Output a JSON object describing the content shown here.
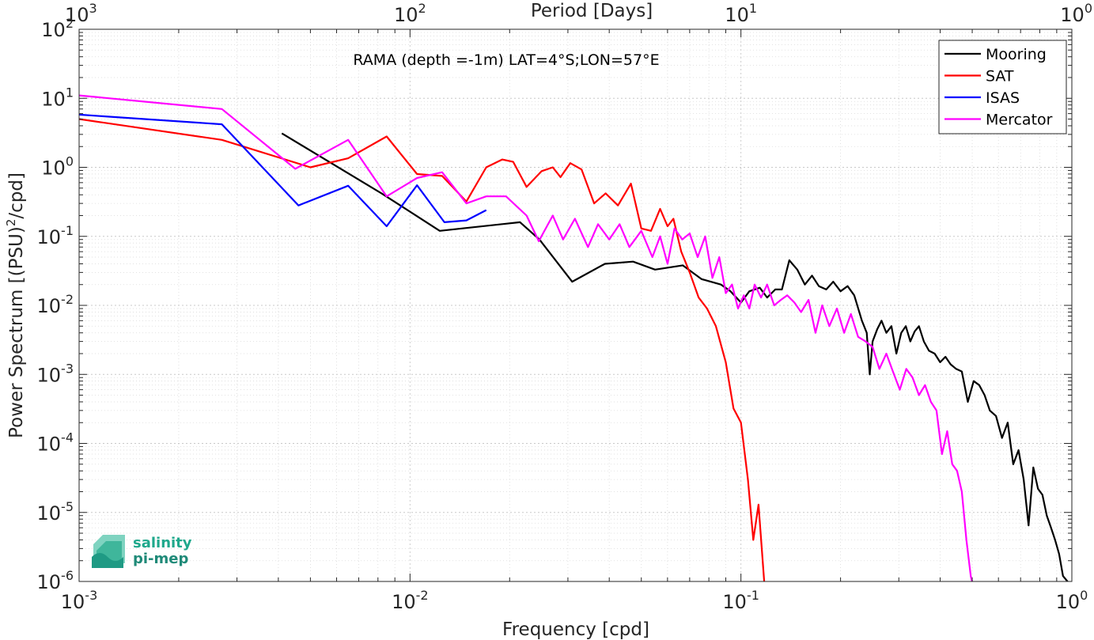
{
  "chart_data": {
    "type": "line",
    "title": "RAMA (depth =-1m) LAT=4°S;LON=57°E",
    "xlabel": "Frequency [cpd]",
    "ylabel": "Power Spectrum [(PSU)",
    "ylabel_sup": "2",
    "ylabel_tail": "/cpd]",
    "top_xlabel": "Period [Days]",
    "x_scale": "log",
    "y_scale": "log",
    "xlim": [
      0.001,
      1
    ],
    "ylim": [
      1e-06,
      100
    ],
    "grid": true,
    "legend_position": "top-right",
    "x_ticks": [
      {
        "value": 0.001,
        "base": "10",
        "exp": "-3"
      },
      {
        "value": 0.01,
        "base": "10",
        "exp": "-2"
      },
      {
        "value": 0.1,
        "base": "10",
        "exp": "-1"
      },
      {
        "value": 1,
        "base": "10",
        "exp": "0"
      }
    ],
    "top_ticks": [
      {
        "value": 0.001,
        "base": "10",
        "exp": "3"
      },
      {
        "value": 0.01,
        "base": "10",
        "exp": "2"
      },
      {
        "value": 0.1,
        "base": "10",
        "exp": "1"
      },
      {
        "value": 1,
        "base": "10",
        "exp": "0"
      }
    ],
    "y_ticks": [
      {
        "value": 100,
        "base": "10",
        "exp": "2"
      },
      {
        "value": 10,
        "base": "10",
        "exp": "1"
      },
      {
        "value": 1,
        "base": "10",
        "exp": "0"
      },
      {
        "value": 0.1,
        "base": "10",
        "exp": "-1"
      },
      {
        "value": 0.01,
        "base": "10",
        "exp": "-2"
      },
      {
        "value": 0.001,
        "base": "10",
        "exp": "-3"
      },
      {
        "value": 0.0001,
        "base": "10",
        "exp": "-4"
      },
      {
        "value": 1e-05,
        "base": "10",
        "exp": "-5"
      },
      {
        "value": 1e-06,
        "base": "10",
        "exp": "-6"
      }
    ],
    "series": [
      {
        "name": "Mooring",
        "color": "#000000",
        "points": [
          [
            0.0041,
            3.1
          ],
          [
            0.0082,
            0.42
          ],
          [
            0.0123,
            0.12
          ],
          [
            0.0215,
            0.16
          ],
          [
            0.0246,
            0.09
          ],
          [
            0.0309,
            0.022
          ],
          [
            0.0388,
            0.04
          ],
          [
            0.0472,
            0.043
          ],
          [
            0.055,
            0.033
          ],
          [
            0.0667,
            0.038
          ],
          [
            0.076,
            0.024
          ],
          [
            0.087,
            0.02
          ],
          [
            0.093,
            0.016
          ],
          [
            0.1,
            0.011
          ],
          [
            0.106,
            0.016
          ],
          [
            0.114,
            0.018
          ],
          [
            0.12,
            0.013
          ],
          [
            0.127,
            0.017
          ],
          [
            0.133,
            0.017
          ],
          [
            0.14,
            0.045
          ],
          [
            0.148,
            0.033
          ],
          [
            0.156,
            0.02
          ],
          [
            0.164,
            0.027
          ],
          [
            0.172,
            0.019
          ],
          [
            0.181,
            0.017
          ],
          [
            0.19,
            0.022
          ],
          [
            0.2,
            0.016
          ],
          [
            0.21,
            0.019
          ],
          [
            0.22,
            0.014
          ],
          [
            0.232,
            0.006
          ],
          [
            0.24,
            0.004
          ],
          [
            0.245,
            0.001
          ],
          [
            0.25,
            0.003
          ],
          [
            0.258,
            0.0045
          ],
          [
            0.266,
            0.006
          ],
          [
            0.275,
            0.004
          ],
          [
            0.285,
            0.005
          ],
          [
            0.295,
            0.002
          ],
          [
            0.305,
            0.004
          ],
          [
            0.315,
            0.005
          ],
          [
            0.325,
            0.003
          ],
          [
            0.335,
            0.0042
          ],
          [
            0.345,
            0.005
          ],
          [
            0.357,
            0.003
          ],
          [
            0.37,
            0.0022
          ],
          [
            0.385,
            0.002
          ],
          [
            0.4,
            0.0015
          ],
          [
            0.415,
            0.0018
          ],
          [
            0.43,
            0.0014
          ],
          [
            0.447,
            0.0012
          ],
          [
            0.465,
            0.0011
          ],
          [
            0.485,
            0.0004
          ],
          [
            0.505,
            0.0008
          ],
          [
            0.525,
            0.0007
          ],
          [
            0.545,
            0.0005
          ],
          [
            0.565,
            0.0003
          ],
          [
            0.59,
            0.00025
          ],
          [
            0.615,
            0.00012
          ],
          [
            0.64,
            0.0002
          ],
          [
            0.665,
            5e-05
          ],
          [
            0.69,
            8e-05
          ],
          [
            0.715,
            3e-05
          ],
          [
            0.74,
            6.5e-06
          ],
          [
            0.765,
            4.5e-05
          ],
          [
            0.79,
            2.2e-05
          ],
          [
            0.815,
            1.8e-05
          ],
          [
            0.84,
            9e-06
          ],
          [
            0.865,
            6e-06
          ],
          [
            0.89,
            4e-06
          ],
          [
            0.915,
            2.5e-06
          ],
          [
            0.94,
            1.2e-06
          ],
          [
            0.97,
            1e-06
          ],
          [
            1.0,
            8e-07
          ]
        ]
      },
      {
        "name": "SAT",
        "color": "#ff0000",
        "points": [
          [
            0.001,
            5.0
          ],
          [
            0.0027,
            2.5
          ],
          [
            0.005,
            1.0
          ],
          [
            0.0065,
            1.35
          ],
          [
            0.0085,
            2.8
          ],
          [
            0.0105,
            0.8
          ],
          [
            0.0125,
            0.75
          ],
          [
            0.0148,
            0.32
          ],
          [
            0.017,
            1.0
          ],
          [
            0.019,
            1.3
          ],
          [
            0.0205,
            1.2
          ],
          [
            0.0225,
            0.52
          ],
          [
            0.025,
            0.88
          ],
          [
            0.027,
            1.0
          ],
          [
            0.0285,
            0.72
          ],
          [
            0.0305,
            1.15
          ],
          [
            0.033,
            0.93
          ],
          [
            0.036,
            0.3
          ],
          [
            0.039,
            0.42
          ],
          [
            0.0425,
            0.28
          ],
          [
            0.0465,
            0.58
          ],
          [
            0.05,
            0.13
          ],
          [
            0.0535,
            0.12
          ],
          [
            0.057,
            0.25
          ],
          [
            0.06,
            0.14
          ],
          [
            0.0625,
            0.18
          ],
          [
            0.066,
            0.06
          ],
          [
            0.07,
            0.03
          ],
          [
            0.0745,
            0.013
          ],
          [
            0.079,
            0.009
          ],
          [
            0.084,
            0.005
          ],
          [
            0.09,
            0.0015
          ],
          [
            0.095,
            0.00032
          ],
          [
            0.1,
            0.0002
          ],
          [
            0.105,
            3e-05
          ],
          [
            0.109,
            4e-06
          ],
          [
            0.113,
            1.3e-05
          ],
          [
            0.118,
            8e-07
          ]
        ]
      },
      {
        "name": "ISAS",
        "color": "#0000ff",
        "points": [
          [
            0.001,
            5.8
          ],
          [
            0.0027,
            4.2
          ],
          [
            0.0046,
            0.28
          ],
          [
            0.0065,
            0.54
          ],
          [
            0.0085,
            0.14
          ],
          [
            0.0105,
            0.55
          ],
          [
            0.0127,
            0.16
          ],
          [
            0.0148,
            0.17
          ],
          [
            0.017,
            0.24
          ]
        ]
      },
      {
        "name": "Mercator",
        "color": "#ff00ff",
        "points": [
          [
            0.001,
            11
          ],
          [
            0.0027,
            7
          ],
          [
            0.0045,
            0.95
          ],
          [
            0.0065,
            2.5
          ],
          [
            0.0085,
            0.38
          ],
          [
            0.0105,
            0.7
          ],
          [
            0.0125,
            0.85
          ],
          [
            0.0148,
            0.3
          ],
          [
            0.017,
            0.38
          ],
          [
            0.0195,
            0.38
          ],
          [
            0.0225,
            0.2
          ],
          [
            0.0245,
            0.085
          ],
          [
            0.027,
            0.2
          ],
          [
            0.029,
            0.09
          ],
          [
            0.0315,
            0.18
          ],
          [
            0.0345,
            0.07
          ],
          [
            0.037,
            0.15
          ],
          [
            0.04,
            0.09
          ],
          [
            0.043,
            0.15
          ],
          [
            0.046,
            0.07
          ],
          [
            0.05,
            0.12
          ],
          [
            0.054,
            0.05
          ],
          [
            0.057,
            0.1
          ],
          [
            0.06,
            0.04
          ],
          [
            0.063,
            0.13
          ],
          [
            0.0665,
            0.09
          ],
          [
            0.07,
            0.11
          ],
          [
            0.074,
            0.05
          ],
          [
            0.078,
            0.1
          ],
          [
            0.082,
            0.025
          ],
          [
            0.086,
            0.05
          ],
          [
            0.09,
            0.015
          ],
          [
            0.094,
            0.02
          ],
          [
            0.098,
            0.009
          ],
          [
            0.102,
            0.014
          ],
          [
            0.106,
            0.009
          ],
          [
            0.11,
            0.02
          ],
          [
            0.115,
            0.013
          ],
          [
            0.12,
            0.02
          ],
          [
            0.126,
            0.01
          ],
          [
            0.132,
            0.012
          ],
          [
            0.138,
            0.014
          ],
          [
            0.145,
            0.011
          ],
          [
            0.152,
            0.008
          ],
          [
            0.16,
            0.012
          ],
          [
            0.168,
            0.004
          ],
          [
            0.176,
            0.01
          ],
          [
            0.185,
            0.005
          ],
          [
            0.195,
            0.009
          ],
          [
            0.205,
            0.004
          ],
          [
            0.215,
            0.0075
          ],
          [
            0.226,
            0.0035
          ],
          [
            0.238,
            0.003
          ],
          [
            0.25,
            0.0025
          ],
          [
            0.262,
            0.0012
          ],
          [
            0.275,
            0.002
          ],
          [
            0.288,
            0.0011
          ],
          [
            0.302,
            0.0006
          ],
          [
            0.316,
            0.0012
          ],
          [
            0.33,
            0.0009
          ],
          [
            0.345,
            0.0005
          ],
          [
            0.36,
            0.0007
          ],
          [
            0.375,
            0.0004
          ],
          [
            0.39,
            0.0003
          ],
          [
            0.405,
            7e-05
          ],
          [
            0.42,
            0.00015
          ],
          [
            0.435,
            5e-05
          ],
          [
            0.45,
            4e-05
          ],
          [
            0.465,
            2e-05
          ],
          [
            0.48,
            4e-06
          ],
          [
            0.495,
            1.2e-06
          ],
          [
            0.505,
            8e-07
          ]
        ]
      }
    ]
  },
  "legend": {
    "items": [
      "Mooring",
      "SAT",
      "ISAS",
      "Mercator"
    ]
  },
  "logo": {
    "line1": "salinity",
    "line2": "pi-mep"
  }
}
